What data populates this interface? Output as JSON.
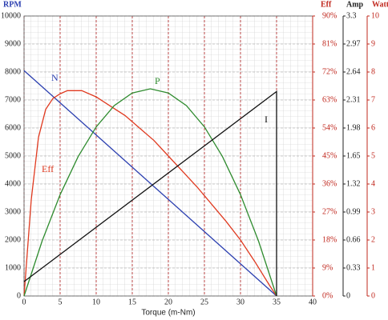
{
  "chart_data": {
    "type": "line",
    "x_label": "Torque (m-Nm)",
    "y_label": "RPM",
    "xlim": [
      0,
      40
    ],
    "xticks": [
      0,
      5,
      10,
      15,
      20,
      25,
      30,
      35,
      40
    ],
    "ylim": [
      0,
      10000
    ],
    "yticks": [
      0,
      1000,
      2000,
      3000,
      4000,
      5000,
      6000,
      7000,
      8000,
      9000,
      10000
    ],
    "grid": true,
    "right_axes": [
      {
        "label": "Eff",
        "color": "#c0281e",
        "lim": [
          0,
          90
        ],
        "ticks": [
          {
            "value": 0,
            "label": "0%"
          },
          {
            "value": 9,
            "label": "9%"
          },
          {
            "value": 18,
            "label": "18%"
          },
          {
            "value": 27,
            "label": "27%"
          },
          {
            "value": 36,
            "label": "36%"
          },
          {
            "value": 45,
            "label": "45%"
          },
          {
            "value": 54,
            "label": "54%"
          },
          {
            "value": 63,
            "label": "63%"
          },
          {
            "value": 72,
            "label": "72%"
          },
          {
            "value": 81,
            "label": "81%"
          },
          {
            "value": 90,
            "label": "90%"
          }
        ]
      },
      {
        "label": "Amp",
        "color": "#222222",
        "lim": [
          0,
          3.3
        ],
        "ticks": [
          0,
          0.33,
          0.66,
          0.99,
          1.32,
          1.65,
          1.98,
          2.31,
          2.64,
          2.97,
          3.3
        ]
      },
      {
        "label": "Watt",
        "color": "#c0281e",
        "lim": [
          0,
          10
        ],
        "ticks": [
          0,
          1,
          2,
          3,
          4,
          5,
          6,
          7,
          8,
          9,
          10
        ]
      }
    ],
    "series": [
      {
        "name": "N",
        "color": "#2b3fb0",
        "axis": "y",
        "x": [
          0,
          35
        ],
        "values": [
          8050,
          0
        ]
      },
      {
        "name": "Eff",
        "color": "#e03a20",
        "axis": 0,
        "x": [
          0,
          1,
          2,
          3,
          4,
          5,
          6,
          7,
          8,
          10,
          12,
          14,
          16,
          18,
          20,
          22,
          24,
          26,
          28,
          30,
          32,
          34,
          35
        ],
        "values": [
          0,
          31,
          51,
          60,
          63.5,
          65,
          66,
          66,
          66,
          64,
          61,
          58,
          54,
          50,
          45,
          40,
          35,
          29.5,
          24,
          18,
          11,
          3.5,
          0
        ]
      },
      {
        "name": "P",
        "color": "#2e8b2e",
        "axis": 2,
        "x": [
          0,
          2.5,
          5,
          7.5,
          10,
          12.5,
          15,
          17.5,
          20,
          22.5,
          25,
          27.5,
          30,
          32.5,
          35
        ],
        "values": [
          0,
          1.96,
          3.62,
          4.98,
          6.04,
          6.8,
          7.25,
          7.4,
          7.25,
          6.8,
          6.04,
          4.98,
          3.62,
          1.96,
          0
        ]
      },
      {
        "name": "I",
        "color": "#111111",
        "axis": 1,
        "x": [
          0,
          35,
          35
        ],
        "values": [
          0.17,
          2.41,
          0
        ]
      }
    ]
  }
}
